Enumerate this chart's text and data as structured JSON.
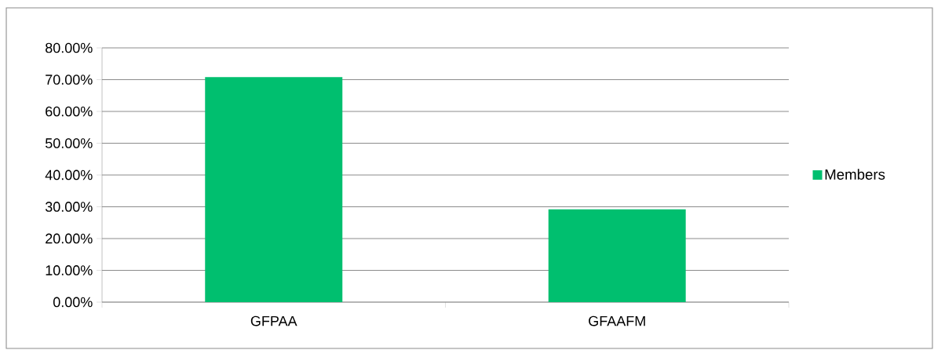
{
  "chart_data": {
    "type": "bar",
    "categories": [
      "GFPAA",
      "GFAAFM"
    ],
    "series": [
      {
        "name": "Members",
        "color": "#00bf6f",
        "values": [
          70.8,
          29.2
        ]
      }
    ],
    "ylim": [
      0,
      80
    ],
    "yticks": [
      {
        "value": 0,
        "label": "0.00%"
      },
      {
        "value": 10,
        "label": "10.00%"
      },
      {
        "value": 20,
        "label": "20.00%"
      },
      {
        "value": 30,
        "label": "30.00%"
      },
      {
        "value": 40,
        "label": "40.00%"
      },
      {
        "value": 50,
        "label": "50.00%"
      },
      {
        "value": 60,
        "label": "60.00%"
      },
      {
        "value": 70,
        "label": "70.00%"
      },
      {
        "value": 80,
        "label": "80.00%"
      }
    ],
    "grid": "y",
    "legend": "right"
  }
}
